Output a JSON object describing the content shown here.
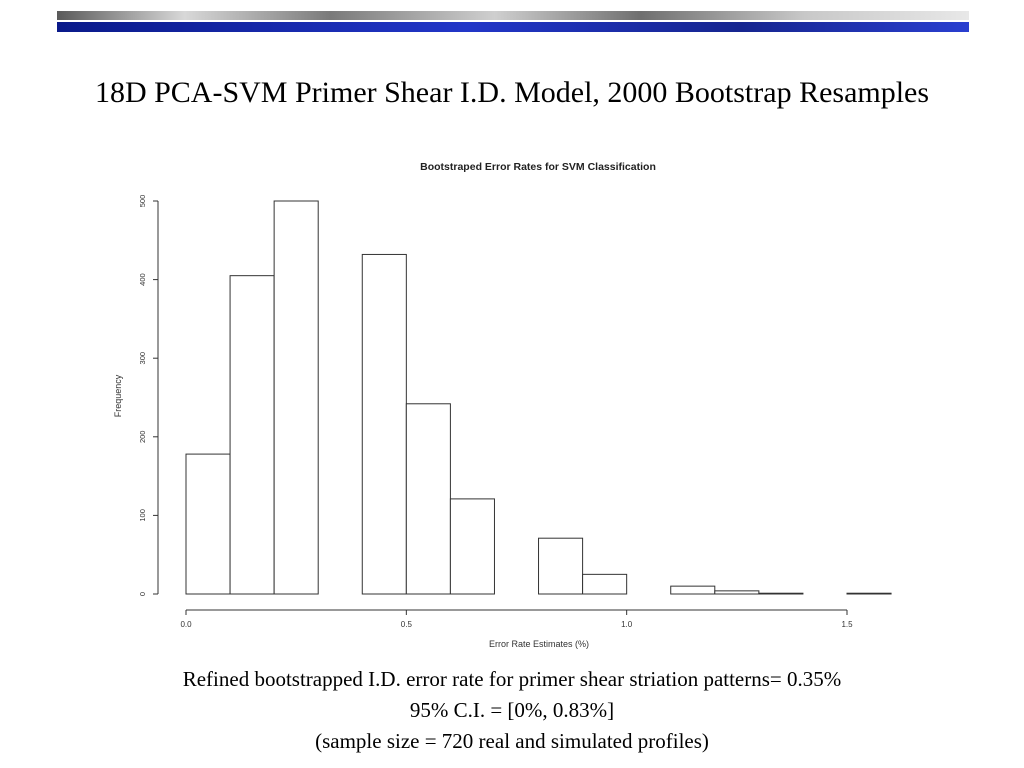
{
  "slide": {
    "title": "18D PCA-SVM Primer Shear I.D. Model, 2000 Bootstrap Resamples",
    "caption_lines": [
      "Refined bootstrapped I.D. error rate for primer shear striation patterns= 0.35%",
      "95% C.I. = [0%, 0.83%]",
      "(sample size = 720 real and simulated profiles)"
    ]
  },
  "chart_data": {
    "type": "bar",
    "title": "Bootstraped Error Rates for SVM Classification",
    "xlabel": "Error Rate Estimates (%)",
    "ylabel": "Frequency",
    "bin_edges": [
      0.0,
      0.1,
      0.2,
      0.3,
      0.4,
      0.5,
      0.6,
      0.7,
      0.8,
      0.9,
      1.0,
      1.1,
      1.2,
      1.3,
      1.4,
      1.5,
      1.6
    ],
    "values": [
      178,
      405,
      500,
      0,
      432,
      242,
      121,
      0,
      71,
      25,
      0,
      10,
      4,
      1,
      0,
      1
    ],
    "xlim": [
      0.0,
      1.6
    ],
    "ylim": [
      0,
      500
    ],
    "x_ticks": [
      0.0,
      0.5,
      1.0,
      1.5
    ],
    "x_tick_labels": [
      "0.0",
      "0.5",
      "1.0",
      "1.5"
    ],
    "y_ticks": [
      0,
      100,
      200,
      300,
      400,
      500
    ],
    "y_tick_labels": [
      "0",
      "100",
      "200",
      "300",
      "400",
      "500"
    ],
    "bar_fill": "#ffffff",
    "bar_stroke": "#333333",
    "grid": false,
    "legend": "none"
  }
}
